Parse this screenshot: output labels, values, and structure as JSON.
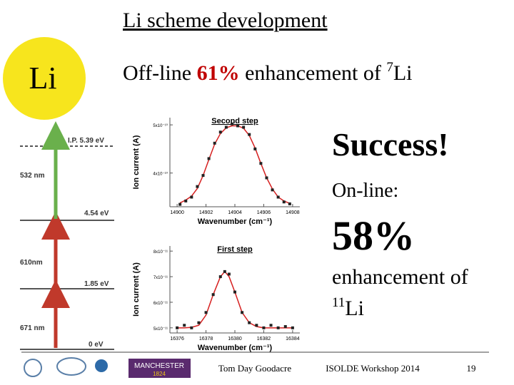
{
  "header": {
    "title": "Li scheme development",
    "offline": {
      "prefix": "Off-line ",
      "percent": "61%",
      "middle": " enhancement of ",
      "mass": "7",
      "element": "Li"
    }
  },
  "logo": {
    "element": "Li"
  },
  "scheme": {
    "levels": [
      {
        "label": "I.P. 5.39 eV"
      },
      {
        "label": "4.54 eV"
      },
      {
        "label": "1.85 eV"
      },
      {
        "label": "0 eV"
      }
    ],
    "transitions": [
      {
        "label": "532 nm"
      },
      {
        "label": "610nm"
      },
      {
        "label": "671 nm"
      }
    ]
  },
  "result": {
    "success": "Success!",
    "online": "On-line:",
    "percent": "58%",
    "text": "enhancement of",
    "mass": "11",
    "element": "Li"
  },
  "plots": [
    {
      "type": "scatter",
      "title": "Second step",
      "x_label": "Wavenumber (cm⁻¹)",
      "y_label": "Ion current (A)",
      "xlim": [
        14899.5,
        14908.5
      ],
      "xticks": [
        14900,
        14902,
        14904,
        14906,
        14908
      ],
      "ylim": [
        3.3e-10,
        5.15e-10
      ],
      "yticks": [
        {
          "value": 5e-10,
          "label": "5x10⁻¹⁰"
        },
        {
          "value": 4e-10,
          "label": "4x10⁻¹⁰"
        }
      ],
      "x": [
        14900.2,
        14900.6,
        14901,
        14901.4,
        14901.8,
        14902.2,
        14902.6,
        14903,
        14903.4,
        14903.8,
        14904.2,
        14904.6,
        14905,
        14905.4,
        14905.8,
        14906.2,
        14906.6,
        14907,
        14907.4,
        14907.8
      ],
      "values": [
        3.35e-10,
        3.42e-10,
        3.5e-10,
        3.72e-10,
        3.95e-10,
        4.3e-10,
        4.62e-10,
        4.85e-10,
        4.95e-10,
        5.02e-10,
        4.98e-10,
        4.95e-10,
        4.8e-10,
        4.5e-10,
        4.2e-10,
        3.9e-10,
        3.65e-10,
        3.5e-10,
        3.4e-10,
        3.36e-10
      ],
      "fit": [
        3.38e-10,
        3.44e-10,
        3.52e-10,
        3.68e-10,
        3.95e-10,
        4.28e-10,
        4.6e-10,
        4.82e-10,
        4.94e-10,
        4.98e-10,
        4.98e-10,
        4.93e-10,
        4.78e-10,
        4.52e-10,
        4.2e-10,
        3.9e-10,
        3.67e-10,
        3.5e-10,
        3.42e-10,
        3.37e-10
      ]
    },
    {
      "type": "scatter",
      "title": "First step",
      "x_label": "Wavenumber (cm⁻¹)",
      "y_label": "Ion current (A)",
      "xlim": [
        16375.5,
        16384.5
      ],
      "xticks": [
        16376,
        16378,
        16380,
        16382,
        16384
      ],
      "ylim": [
        4.8e-11,
        8.2e-11
      ],
      "yticks": [
        {
          "value": 8e-11,
          "label": "8x10⁻¹¹"
        },
        {
          "value": 7e-11,
          "label": "7x10⁻¹¹"
        },
        {
          "value": 6e-11,
          "label": "6x10⁻¹¹"
        },
        {
          "value": 5e-11,
          "label": "5x10⁻¹¹"
        }
      ],
      "x": [
        16376,
        16376.5,
        16377,
        16377.5,
        16378,
        16378.5,
        16379,
        16379.3,
        16379.6,
        16380,
        16380.5,
        16381,
        16381.5,
        16382,
        16382.5,
        16383,
        16383.5,
        16384
      ],
      "values": [
        5e-11,
        5.1e-11,
        5e-11,
        5.2e-11,
        5.6e-11,
        6.3e-11,
        7e-11,
        7.2e-11,
        7.1e-11,
        6.4e-11,
        5.6e-11,
        5.2e-11,
        5.1e-11,
        5e-11,
        5.1e-11,
        5e-11,
        5.05e-11,
        5e-11
      ],
      "fit": [
        5e-11,
        5e-11,
        5.02e-11,
        5.1e-11,
        5.5e-11,
        6.3e-11,
        7e-11,
        7.2e-11,
        7e-11,
        6.4e-11,
        5.6e-11,
        5.2e-11,
        5.05e-11,
        5e-11,
        5e-11,
        5e-11,
        5e-11,
        5e-11
      ]
    }
  ],
  "footer": {
    "author": "Tom Day Goodacre",
    "event": "ISOLDE Workshop 2014",
    "page": "19",
    "logo_text": "MANCHESTER",
    "logo_year": "1824"
  }
}
